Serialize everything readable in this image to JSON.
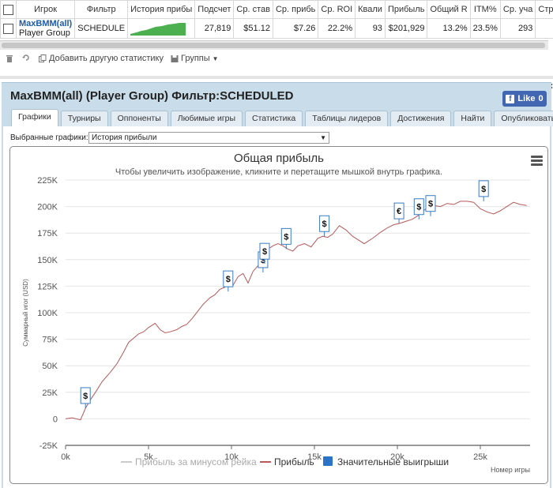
{
  "table": {
    "headers": [
      "Игрок",
      "Фильтр",
      "История прибыли",
      "Подсчет",
      "Ср. ставка",
      "Ср. прибыль",
      "Ср. ROI",
      "Квалиф.",
      "Прибыль",
      "Общий ROI",
      "ITM%",
      "Ср. участ.",
      "Страна"
    ],
    "header_display": [
      "Игрок",
      "Фильтр",
      "История прибы",
      "Подсчет",
      "Ср. став",
      "Ср. прибь",
      "Ср. ROI",
      "Квали",
      "Прибыль",
      "Общий R",
      "ITM%",
      "Ср. уча",
      "Стра"
    ],
    "row": {
      "player_name": "MaxBMM(all)",
      "player_group": "Player Group",
      "filter": "SCHEDULE",
      "count": "27,819",
      "avg_stake": "$51.12",
      "avg_profit": "$7.26",
      "avg_roi": "22.2%",
      "qualif": "93",
      "profit": "$201,929",
      "total_roi": "13.2%",
      "itm": "23.5%",
      "avg_players": "293",
      "country": ""
    }
  },
  "toolbar": {
    "add_stat": "Добавить другую статистику",
    "groups": "Группы"
  },
  "panel": {
    "title": "MaxBMM(all) (Player Group) Фильтр:SCHEDULED",
    "like_label": "Like",
    "like_count": "0",
    "close": "×",
    "tabs": [
      "Графики",
      "Турниры",
      "Оппоненты",
      "Любимые игры",
      "Статистика",
      "Таблицы лидеров",
      "Достижения",
      "Найти",
      "Опубликовать"
    ],
    "active_tab": "Графики",
    "chart_select_label": "Выбранные графики:",
    "chart_select_value": "История прибыли"
  },
  "colors": {
    "accent": "#1d5ba8",
    "panel_bg": "#c8dde9",
    "profit_line": "#b5595b",
    "flag_border": "#3a7cc1",
    "legend_big_win": "#2b73c9",
    "facebook": "#4267b2"
  },
  "chart_data": {
    "type": "line",
    "title": "Общая прибыль",
    "subtitle": "Чтобы увеличить изображение, кликните и перетащите мышкой внутрь графика.",
    "xlabel": "Номер игры",
    "ylabel": "Суммарный игог (USD)",
    "xlim": [
      0,
      28000
    ],
    "ylim": [
      -25000,
      225000
    ],
    "x_ticks": [
      "0k",
      "5k",
      "10k",
      "15k",
      "20k",
      "25k"
    ],
    "x_tick_values": [
      0,
      5000,
      10000,
      15000,
      20000,
      25000
    ],
    "y_ticks": [
      "-25K",
      "0",
      "25K",
      "50K",
      "75K",
      "100K",
      "125K",
      "150K",
      "175K",
      "200K",
      "225K"
    ],
    "y_tick_values": [
      -25000,
      0,
      25000,
      50000,
      75000,
      100000,
      125000,
      150000,
      175000,
      200000,
      225000
    ],
    "grid": true,
    "legend_position": "bottom",
    "series": [
      {
        "name": "Прибыль за минусом рейка",
        "values": []
      },
      {
        "name": "Прибыль",
        "x": [
          0,
          400,
          900,
          1200,
          1500,
          1800,
          2200,
          2700,
          3100,
          3500,
          3800,
          4100,
          4400,
          4700,
          5000,
          5400,
          5700,
          6000,
          6300,
          6700,
          7000,
          7300,
          7600,
          8000,
          8300,
          8700,
          9000,
          9300,
          9600,
          9800,
          10100,
          10400,
          10700,
          11000,
          11300,
          11700,
          12000,
          12200,
          12500,
          12800,
          13100,
          13400,
          13700,
          14000,
          14400,
          14800,
          15200,
          15500,
          15800,
          16100,
          16500,
          16900,
          17300,
          17700,
          18000,
          18500,
          19000,
          19400,
          19800,
          20100,
          20500,
          20900,
          21200,
          21500,
          21800,
          22200,
          22600,
          23000,
          23400,
          23800,
          24200,
          24600,
          25000,
          25400,
          25800,
          26200,
          26600,
          27000,
          27400,
          27800
        ],
        "values": [
          0,
          1000,
          -1000,
          10000,
          18000,
          25000,
          35000,
          44000,
          52000,
          63000,
          72000,
          76000,
          80000,
          82000,
          86000,
          90000,
          84000,
          81000,
          82000,
          84000,
          87000,
          89000,
          94000,
          102000,
          108000,
          114000,
          117000,
          122000,
          124000,
          132000,
          126000,
          134000,
          137000,
          128000,
          139000,
          146000,
          152000,
          160000,
          163000,
          165000,
          163000,
          160000,
          158000,
          163000,
          165000,
          162000,
          170000,
          172000,
          171000,
          174000,
          182000,
          178000,
          172000,
          168000,
          165000,
          170000,
          176000,
          180000,
          183000,
          184000,
          186000,
          188000,
          191000,
          195000,
          199000,
          201000,
          200000,
          203000,
          202000,
          205000,
          205000,
          204000,
          198000,
          195000,
          193000,
          196000,
          200000,
          204000,
          202000,
          201000
        ]
      },
      {
        "name": "Значительные выигрыши",
        "type": "flags",
        "points": [
          {
            "x": 1200,
            "y": 10000,
            "label": "$"
          },
          {
            "x": 9800,
            "y": 120000,
            "label": "$"
          },
          {
            "x": 11900,
            "y": 138000,
            "label": "$"
          },
          {
            "x": 12000,
            "y": 146000,
            "label": "$"
          },
          {
            "x": 13300,
            "y": 160000,
            "label": "$"
          },
          {
            "x": 15600,
            "y": 172000,
            "label": "$"
          },
          {
            "x": 20100,
            "y": 184000,
            "label": "€"
          },
          {
            "x": 21300,
            "y": 188000,
            "label": "$"
          },
          {
            "x": 22000,
            "y": 191000,
            "label": "$"
          },
          {
            "x": 25200,
            "y": 205000,
            "label": "$"
          }
        ]
      }
    ]
  }
}
